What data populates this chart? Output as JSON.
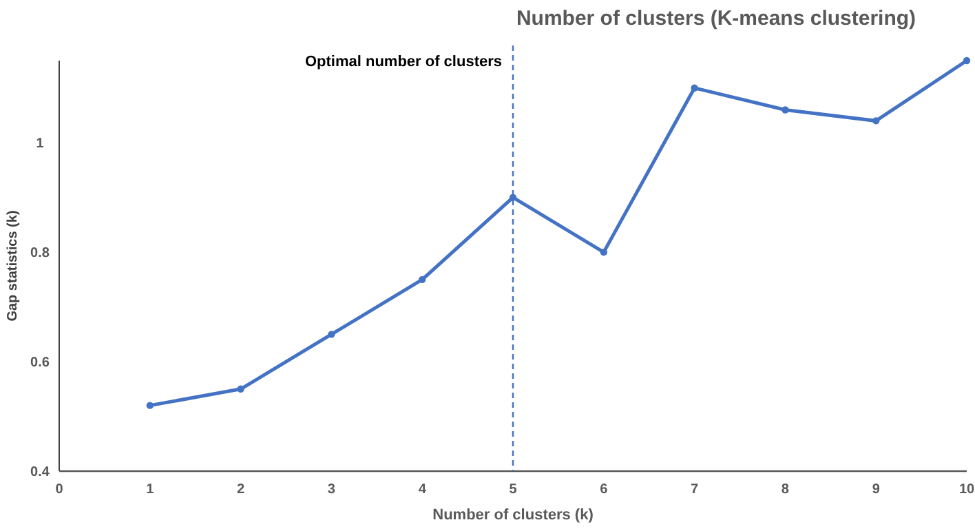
{
  "chart_data": {
    "type": "line",
    "title": "Number of clusters (K-means clustering)",
    "xlabel": "Number of clusters (k)",
    "ylabel": "Gap statistics (k)",
    "x": [
      1,
      2,
      3,
      4,
      5,
      6,
      7,
      8,
      9,
      10
    ],
    "series": [
      {
        "color": "#4472c4",
        "values": [
          0.52,
          0.55,
          0.65,
          0.75,
          0.9,
          0.8,
          1.1,
          1.06,
          1.04,
          1.15
        ]
      }
    ],
    "xlim": [
      0,
      10
    ],
    "xticks": [
      0,
      1,
      2,
      3,
      4,
      5,
      6,
      7,
      8,
      9,
      10
    ],
    "ylim": [
      0.4,
      1.15
    ],
    "yticks": [
      0.4,
      0.6,
      0.8,
      1
    ],
    "ref_lines": [
      {
        "axis": "x",
        "value": 5,
        "label": "Optimal number of clusters",
        "color": "#4472c4",
        "line_style": "dashed"
      }
    ],
    "grid": false,
    "marker": "circle",
    "line_style": "solid"
  }
}
